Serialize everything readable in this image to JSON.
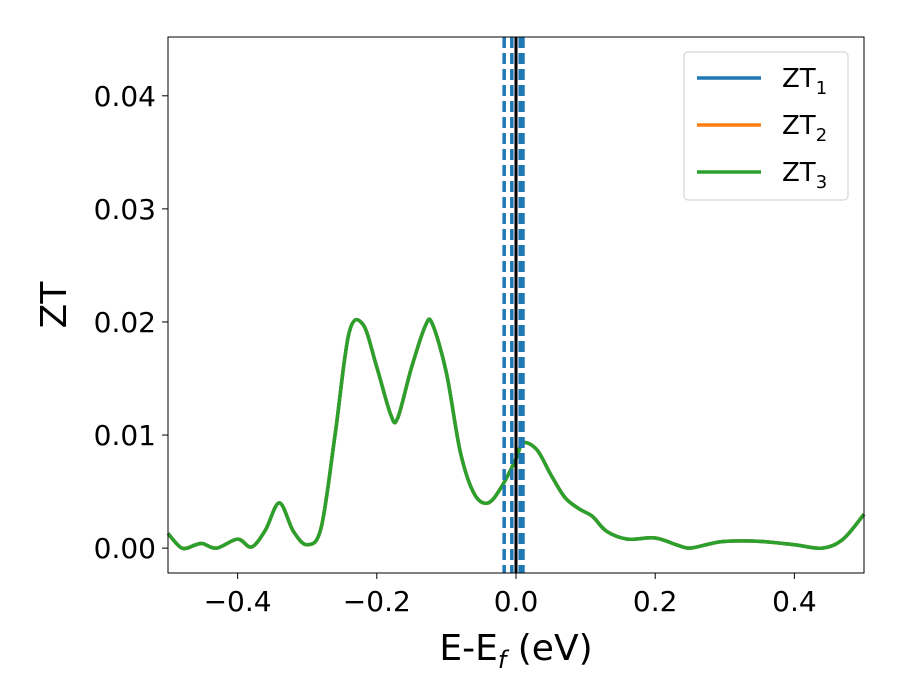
{
  "chart_data": {
    "type": "line",
    "title": "",
    "xlabel": {
      "main": "E-E",
      "sub": "f",
      "unit": " (eV)"
    },
    "ylabel": "ZT",
    "xlim": [
      -0.5,
      0.5
    ],
    "ylim": [
      -0.0022,
      0.0452
    ],
    "grid": false,
    "legend_position": "top-right",
    "x_ticks": [
      {
        "value": -0.4,
        "label": "−0.4"
      },
      {
        "value": -0.2,
        "label": "−0.2"
      },
      {
        "value": 0.0,
        "label": "0.0"
      },
      {
        "value": 0.2,
        "label": "0.2"
      },
      {
        "value": 0.4,
        "label": "0.4"
      }
    ],
    "y_ticks": [
      {
        "value": 0.0,
        "label": "0.00"
      },
      {
        "value": 0.01,
        "label": "0.01"
      },
      {
        "value": 0.02,
        "label": "0.02"
      },
      {
        "value": 0.03,
        "label": "0.03"
      },
      {
        "value": 0.04,
        "label": "0.04"
      }
    ],
    "x": [
      -0.5,
      -0.48,
      -0.46,
      -0.45,
      -0.43,
      -0.4,
      -0.38,
      -0.36,
      -0.34,
      -0.32,
      -0.3,
      -0.28,
      -0.26,
      -0.24,
      -0.22,
      -0.2,
      -0.18,
      -0.17,
      -0.15,
      -0.13,
      -0.12,
      -0.1,
      -0.08,
      -0.06,
      -0.04,
      -0.02,
      0.0,
      0.01,
      0.03,
      0.05,
      0.07,
      0.09,
      0.11,
      0.13,
      0.16,
      0.2,
      0.23,
      0.25,
      0.28,
      0.3,
      0.35,
      0.4,
      0.44,
      0.47,
      0.5
    ],
    "series": [
      {
        "name": "ZT",
        "name_sub": "1",
        "color": "#1f77b4",
        "values": [
          0.0013,
          0.0,
          0.0003,
          0.0004,
          0.0,
          0.0008,
          0.0001,
          0.0016,
          0.004,
          0.0015,
          0.0003,
          0.0018,
          0.01,
          0.019,
          0.0198,
          0.016,
          0.0118,
          0.0115,
          0.016,
          0.0197,
          0.0198,
          0.0155,
          0.0085,
          0.0048,
          0.004,
          0.0055,
          0.0079,
          0.0093,
          0.0087,
          0.0065,
          0.0045,
          0.0035,
          0.0028,
          0.0015,
          0.0008,
          0.0009,
          0.0003,
          0.0,
          0.0004,
          0.0006,
          0.0006,
          0.0003,
          0.0,
          0.0008,
          0.003
        ]
      },
      {
        "name": "ZT",
        "name_sub": "2",
        "color": "#ff7f0e",
        "values": [
          0.0013,
          0.0,
          0.0003,
          0.0004,
          0.0,
          0.0008,
          0.0001,
          0.0016,
          0.004,
          0.0015,
          0.0003,
          0.0018,
          0.01,
          0.019,
          0.0198,
          0.016,
          0.0118,
          0.0115,
          0.016,
          0.0197,
          0.0198,
          0.0155,
          0.0085,
          0.0048,
          0.004,
          0.0055,
          0.0079,
          0.0093,
          0.0087,
          0.0065,
          0.0045,
          0.0035,
          0.0028,
          0.0015,
          0.0008,
          0.0009,
          0.0003,
          0.0,
          0.0004,
          0.0006,
          0.0006,
          0.0003,
          0.0,
          0.0008,
          0.003
        ]
      },
      {
        "name": "ZT",
        "name_sub": "3",
        "color": "#2ca02c",
        "values": [
          0.0013,
          0.0,
          0.0003,
          0.0004,
          0.0,
          0.0008,
          0.0001,
          0.0016,
          0.004,
          0.0015,
          0.0003,
          0.0018,
          0.01,
          0.019,
          0.0198,
          0.016,
          0.0118,
          0.0115,
          0.016,
          0.0197,
          0.0198,
          0.0155,
          0.0085,
          0.0048,
          0.004,
          0.0055,
          0.0079,
          0.0093,
          0.0087,
          0.0065,
          0.0045,
          0.0035,
          0.0028,
          0.0015,
          0.0008,
          0.0009,
          0.0003,
          0.0,
          0.0004,
          0.0006,
          0.0006,
          0.0003,
          0.0,
          0.0008,
          0.003
        ]
      }
    ],
    "vertical_lines": [
      {
        "x": -0.017,
        "style": "dashed",
        "color": "#1f77b4"
      },
      {
        "x": -0.006,
        "style": "dashed",
        "color": "#1f77b4"
      },
      {
        "x": 0.006,
        "style": "dashed",
        "color": "#1f77b4"
      },
      {
        "x": 0.01,
        "style": "dashed",
        "color": "#1f77b4"
      },
      {
        "x": 0.0,
        "style": "solid",
        "color": "#000000"
      }
    ]
  }
}
